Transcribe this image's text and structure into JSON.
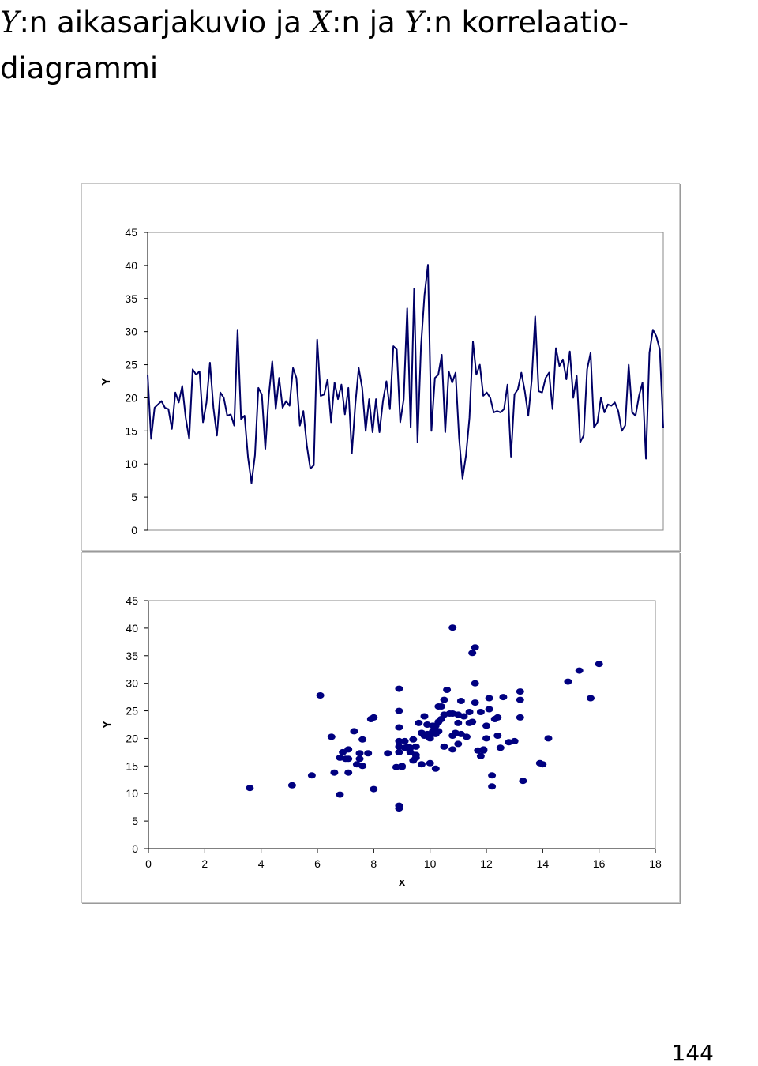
{
  "page": {
    "heading_parts": [
      {
        "text": "Y",
        "math": true
      },
      {
        "text": ":n aikasarjakuvio ja ",
        "math": false
      },
      {
        "text": "X",
        "math": true
      },
      {
        "text": ":n ja ",
        "math": false
      },
      {
        "text": "Y",
        "math": true
      },
      {
        "text": ":n korrelaatio-",
        "math": false
      }
    ],
    "heading_line2": "diagrammi",
    "page_number": "144"
  },
  "chart_data": [
    {
      "type": "line",
      "title": "",
      "ylabel": "Y",
      "xlabel": "",
      "ylim": [
        0,
        45
      ],
      "yticks": [
        "0",
        "5",
        "10",
        "15",
        "20",
        "25",
        "30",
        "35",
        "40",
        "45"
      ],
      "grid": false,
      "line_color": "#000066",
      "series": [
        {
          "values": [
            23.5,
            13.8,
            18.5,
            19,
            19.5,
            18.5,
            18.3,
            15.3,
            20.8,
            19.3,
            21.8,
            17,
            13.8,
            24.3,
            23.5,
            24,
            16.3,
            19.3,
            25.3,
            18.5,
            14.3,
            20.8,
            20,
            17.3,
            17.5,
            15.8,
            30.3,
            16.8,
            17.3,
            11,
            7.1,
            11.3,
            21.5,
            20.5,
            12.3,
            20.3,
            25.5,
            18.3,
            23,
            18.5,
            19.5,
            18.8,
            24.5,
            23,
            15.8,
            18,
            12.8,
            9.3,
            9.8,
            28.8,
            20.3,
            20.5,
            22.8,
            16.3,
            22.3,
            19.8,
            22,
            17.5,
            21.5,
            11.6,
            19,
            24.5,
            21.5,
            15,
            19.8,
            14.8,
            19.8,
            14.8,
            19.5,
            22.5,
            18.3,
            27.8,
            27.3,
            16.3,
            19.8,
            33.5,
            15.5,
            36.5,
            13.3,
            27.8,
            35.5,
            40.1,
            15,
            23,
            23.5,
            26.5,
            14.8,
            24,
            22.3,
            23.8,
            14,
            7.8,
            11.3,
            17,
            28.5,
            23.5,
            25,
            20.3,
            20.8,
            20,
            17.8,
            18,
            17.8,
            18.3,
            22,
            11.1,
            20.5,
            21.3,
            23.8,
            21,
            17.3,
            22.8,
            32.3,
            21,
            20.8,
            23,
            23.8,
            18.3,
            27.5,
            24.8,
            25.8,
            22.8,
            27,
            20,
            23.3,
            13.3,
            14.3,
            24.3,
            26.8,
            15.5,
            16.3,
            20,
            17.8,
            19,
            18.8,
            19.3,
            18,
            15,
            15.8,
            25,
            17.8,
            17.3,
            20.3,
            22.3,
            10.8,
            26.8,
            30.3,
            29.3,
            27.3,
            15.5
          ]
        }
      ]
    },
    {
      "type": "scatter",
      "title": "",
      "xlabel": "x",
      "ylabel": "Y",
      "xlim": [
        0,
        18
      ],
      "ylim": [
        0,
        45
      ],
      "xticks": [
        "0",
        "2",
        "4",
        "6",
        "8",
        "10",
        "12",
        "14",
        "16",
        "18"
      ],
      "yticks": [
        "0",
        "5",
        "10",
        "15",
        "20",
        "25",
        "30",
        "35",
        "40",
        "45"
      ],
      "grid": false,
      "marker_color": "#000080",
      "points": [
        [
          3.6,
          11
        ],
        [
          5.1,
          11.5
        ],
        [
          5.8,
          13.3
        ],
        [
          6.1,
          27.8
        ],
        [
          6.5,
          20.3
        ],
        [
          6.6,
          13.8
        ],
        [
          6.8,
          9.8
        ],
        [
          6.8,
          16.5
        ],
        [
          6.9,
          17.5
        ],
        [
          7,
          16.3
        ],
        [
          7.1,
          13.8
        ],
        [
          7.1,
          16.3
        ],
        [
          7.1,
          18
        ],
        [
          7.3,
          21.3
        ],
        [
          7.4,
          15.3
        ],
        [
          7.5,
          16.3
        ],
        [
          7.5,
          17.3
        ],
        [
          7.6,
          19.8
        ],
        [
          7.6,
          15
        ],
        [
          7.8,
          17.3
        ],
        [
          7.9,
          23.5
        ],
        [
          8,
          23.8
        ],
        [
          8,
          10.8
        ],
        [
          8.5,
          17.3
        ],
        [
          8.8,
          14.8
        ],
        [
          8.9,
          7.8
        ],
        [
          8.9,
          7.3
        ],
        [
          8.9,
          25
        ],
        [
          8.9,
          29
        ],
        [
          8.9,
          18.5
        ],
        [
          8.9,
          17.5
        ],
        [
          8.9,
          19.5
        ],
        [
          8.9,
          22
        ],
        [
          9,
          15
        ],
        [
          9,
          14.8
        ],
        [
          9.1,
          18.3
        ],
        [
          9.1,
          19.5
        ],
        [
          9.2,
          18.5
        ],
        [
          9.3,
          17.5
        ],
        [
          9.3,
          18.3
        ],
        [
          9.4,
          19.8
        ],
        [
          9.4,
          16
        ],
        [
          9.5,
          18.5
        ],
        [
          9.5,
          17
        ],
        [
          9.5,
          16.5
        ],
        [
          9.6,
          22.8
        ],
        [
          9.7,
          21
        ],
        [
          9.7,
          15.3
        ],
        [
          9.8,
          20.5
        ],
        [
          9.8,
          24
        ],
        [
          9.9,
          22.5
        ],
        [
          9.9,
          20.8
        ],
        [
          10,
          15.5
        ],
        [
          10,
          20.5
        ],
        [
          10,
          20
        ],
        [
          10.1,
          22.3
        ],
        [
          10.1,
          21.3
        ],
        [
          10.2,
          20.8
        ],
        [
          10.2,
          22.3
        ],
        [
          10.2,
          14.5
        ],
        [
          10.3,
          21.3
        ],
        [
          10.3,
          23
        ],
        [
          10.3,
          25.8
        ],
        [
          10.4,
          23.5
        ],
        [
          10.4,
          25.8
        ],
        [
          10.5,
          27
        ],
        [
          10.5,
          24.3
        ],
        [
          10.5,
          18.5
        ],
        [
          10.6,
          28.8
        ],
        [
          10.7,
          24.5
        ],
        [
          10.8,
          40.1
        ],
        [
          10.8,
          24.5
        ],
        [
          10.8,
          18
        ],
        [
          10.8,
          20.5
        ],
        [
          10.9,
          21
        ],
        [
          11,
          22.8
        ],
        [
          11,
          24.3
        ],
        [
          11,
          19
        ],
        [
          11.1,
          26.8
        ],
        [
          11.1,
          20.8
        ],
        [
          11.2,
          24
        ],
        [
          11.3,
          20.3
        ],
        [
          11.4,
          22.8
        ],
        [
          11.4,
          24.8
        ],
        [
          11.5,
          35.5
        ],
        [
          11.5,
          23
        ],
        [
          11.6,
          30
        ],
        [
          11.6,
          36.5
        ],
        [
          11.6,
          26.5
        ],
        [
          11.7,
          17.8
        ],
        [
          11.8,
          24.8
        ],
        [
          11.8,
          16.8
        ],
        [
          11.9,
          18
        ],
        [
          11.9,
          17.8
        ],
        [
          12,
          22.3
        ],
        [
          12,
          20
        ],
        [
          12.1,
          27.3
        ],
        [
          12.1,
          25.3
        ],
        [
          12.2,
          13.3
        ],
        [
          12.2,
          11.3
        ],
        [
          12.3,
          23.5
        ],
        [
          12.4,
          23.8
        ],
        [
          12.4,
          20.5
        ],
        [
          12.5,
          18.3
        ],
        [
          12.6,
          27.5
        ],
        [
          12.8,
          19.3
        ],
        [
          13,
          19.5
        ],
        [
          13.2,
          28.5
        ],
        [
          13.2,
          27
        ],
        [
          13.2,
          23.8
        ],
        [
          13.3,
          12.3
        ],
        [
          13.9,
          15.5
        ],
        [
          14,
          15.3
        ],
        [
          14.2,
          20
        ],
        [
          14.9,
          30.3
        ],
        [
          15.3,
          32.3
        ],
        [
          15.7,
          27.3
        ],
        [
          16,
          33.5
        ]
      ]
    }
  ]
}
